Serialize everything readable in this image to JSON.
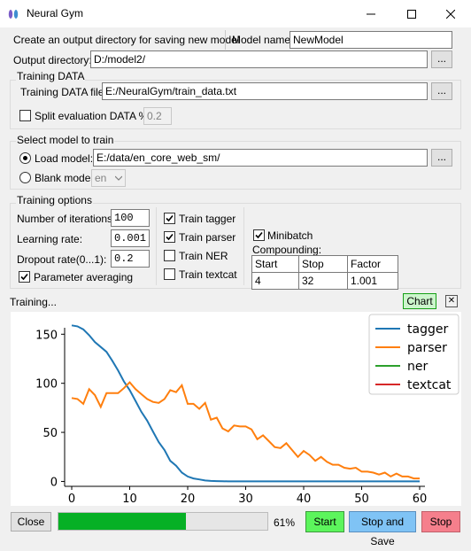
{
  "window": {
    "title": "Neural Gym"
  },
  "output": {
    "create_label": "Create an output directory for saving new model",
    "model_name_label": "Model name:",
    "model_name_value": "NewModel",
    "dir_label": "Output directory:",
    "dir_value": "D:/model2/",
    "browse_label": "..."
  },
  "training_data": {
    "group_label": "Training DATA",
    "file_label": "Training DATA file:",
    "file_value": "E:/NeuralGym/train_data.txt",
    "browse_label": "...",
    "split_label": "Split evaluation DATA %",
    "split_checked": false,
    "split_value": "0.2"
  },
  "model_select": {
    "group_label": "Select model to train",
    "load_label": "Load model:",
    "load_value": "E:/data/en_core_web_sm/",
    "browse_label": "...",
    "blank_label": "Blank model",
    "blank_lang": "en",
    "selected": "load"
  },
  "training_options": {
    "group_label": "Training options",
    "iterations_label": "Number of iterations:",
    "iterations_value": "100",
    "lr_label": "Learning rate:",
    "lr_value": "0.001",
    "dropout_label": "Dropout rate(0...1):",
    "dropout_value": "0.2",
    "averaging_label": "Parameter averaging",
    "averaging_checked": true,
    "pipes": [
      {
        "label": "Train tagger",
        "checked": true
      },
      {
        "label": "Train parser",
        "checked": true
      },
      {
        "label": "Train NER",
        "checked": false
      },
      {
        "label": "Train textcat",
        "checked": false
      }
    ],
    "minibatch_label": "Minibatch",
    "minibatch_checked": true,
    "compounding_label": "Compounding:",
    "compounding_headers": [
      "Start",
      "Stop",
      "Factor"
    ],
    "compounding_values": [
      "4",
      "32",
      "1.001"
    ]
  },
  "status": {
    "training_label": "Training...",
    "chart_button": "Chart",
    "close_x": "✕"
  },
  "chart_data": {
    "type": "line",
    "xlim": [
      0,
      60
    ],
    "ylim": [
      -5,
      162
    ],
    "xticks": [
      0,
      10,
      20,
      30,
      40,
      50,
      60
    ],
    "yticks": [
      0,
      50,
      100,
      150
    ],
    "legend_position": "top-right",
    "series": [
      {
        "name": "tagger",
        "color": "#1f77b4",
        "x": [
          0,
          1,
          2,
          3,
          4,
          5,
          6,
          7,
          8,
          9,
          10,
          11,
          12,
          13,
          14,
          15,
          16,
          17,
          18,
          19,
          20,
          21,
          22,
          23,
          24,
          25,
          26,
          27,
          28,
          29,
          30,
          31,
          32,
          33,
          34,
          35,
          36,
          37,
          38,
          39,
          40,
          41,
          42,
          43,
          44,
          45,
          46,
          47,
          48,
          49,
          50,
          51,
          52,
          53,
          54,
          55,
          56,
          57,
          58,
          59,
          60
        ],
        "y": [
          159,
          158,
          155,
          149,
          142,
          137,
          132,
          123,
          113,
          102,
          93,
          82,
          71,
          62,
          51,
          40,
          32,
          21,
          16,
          9,
          5,
          3,
          2,
          1,
          0.5,
          0.3,
          0.2,
          0.1,
          0.1,
          0.1,
          0.1,
          0.1,
          0.1,
          0.1,
          0.1,
          0.1,
          0.1,
          0.1,
          0.1,
          0.1,
          0.1,
          0.1,
          0.1,
          0.1,
          0.1,
          0.1,
          0.1,
          0.1,
          0.1,
          0.1,
          0.1,
          0.1,
          0.1,
          0.1,
          0.1,
          0.1,
          0.1,
          0.1,
          0.1,
          0.1,
          0.1
        ]
      },
      {
        "name": "parser",
        "color": "#ff7f0e",
        "x": [
          0,
          1,
          2,
          3,
          4,
          5,
          6,
          7,
          8,
          9,
          10,
          11,
          12,
          13,
          14,
          15,
          16,
          17,
          18,
          19,
          20,
          21,
          22,
          23,
          24,
          25,
          26,
          27,
          28,
          29,
          30,
          31,
          32,
          33,
          34,
          35,
          36,
          37,
          38,
          39,
          40,
          41,
          42,
          43,
          44,
          45,
          46,
          47,
          48,
          49,
          50,
          51,
          52,
          53,
          54,
          55,
          56,
          57,
          58,
          59,
          60
        ],
        "y": [
          85,
          84,
          79,
          94,
          88,
          76,
          90,
          90,
          90,
          95,
          101,
          94,
          89,
          84,
          81,
          80,
          84,
          93,
          91,
          98,
          79,
          79,
          74,
          80,
          63,
          65,
          54,
          51,
          57,
          56,
          56,
          53,
          43,
          47,
          41,
          35,
          34,
          39,
          32,
          25,
          31,
          27,
          21,
          25,
          20,
          17,
          17,
          14,
          13,
          14,
          10,
          10,
          9,
          7,
          9,
          5,
          8,
          5,
          5,
          3,
          3
        ]
      },
      {
        "name": "ner",
        "color": "#2ca02c",
        "x": [],
        "y": []
      },
      {
        "name": "textcat",
        "color": "#d62728",
        "x": [],
        "y": []
      }
    ]
  },
  "footer": {
    "close_label": "Close",
    "progress": 0.61,
    "progress_text": "61%",
    "start_label": "Start",
    "stop_save_label": "Stop and Save",
    "stop_label": "Stop",
    "start_color": "#5cf55c",
    "stop_save_color": "#7fc3f5",
    "stop_color": "#f57f8c",
    "progress_color": "#06b025"
  }
}
